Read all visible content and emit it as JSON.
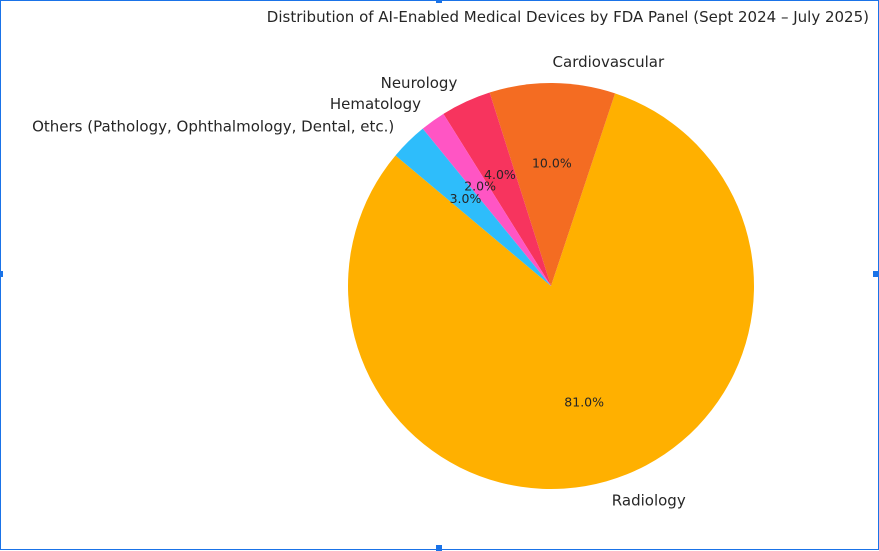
{
  "chart_data": {
    "type": "pie",
    "title": "Distribution of AI-Enabled Medical Devices by FDA Panel (Sept 2024 – July 2025)",
    "categories": [
      "Radiology",
      "Cardiovascular",
      "Neurology",
      "Hematology",
      "Others (Pathology, Ophthalmology, Dental, etc.)"
    ],
    "values": [
      81.0,
      10.0,
      4.0,
      2.0,
      3.0
    ],
    "percent_labels": [
      "81.0%",
      "10.0%",
      "4.0%",
      "2.0%",
      "3.0%"
    ],
    "colors": [
      "#FFB000",
      "#F46C22",
      "#F7345E",
      "#FF55C4",
      "#2EBDFB"
    ],
    "legend": "none",
    "start_angle_deg": 140,
    "direction": "counterclockwise"
  }
}
